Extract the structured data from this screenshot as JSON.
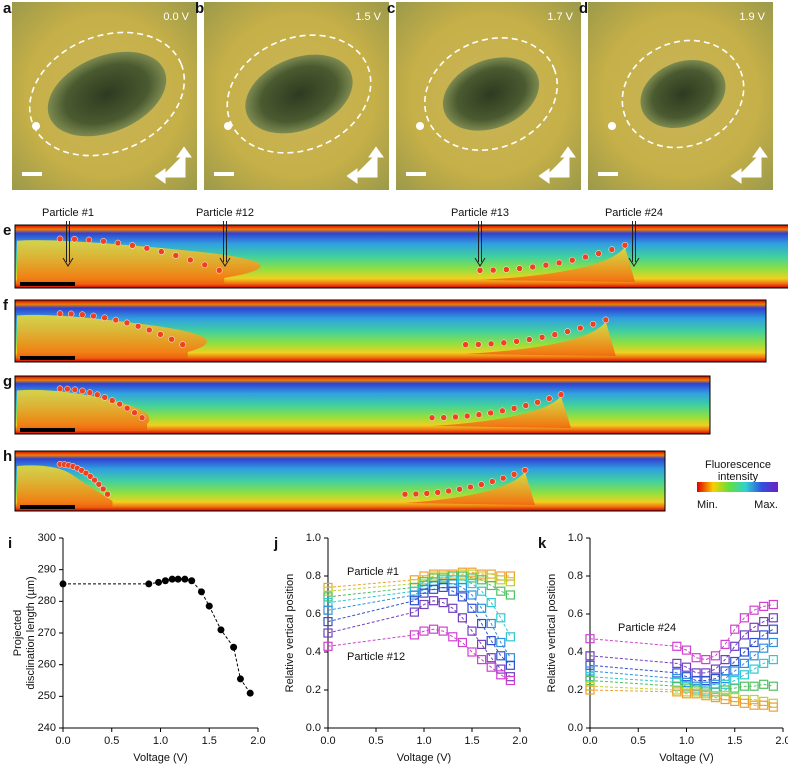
{
  "image_panels": [
    {
      "label": "a",
      "voltage": "0.0 V"
    },
    {
      "label": "b",
      "voltage": "1.5 V"
    },
    {
      "label": "c",
      "voltage": "1.7 V"
    },
    {
      "label": "d",
      "voltage": "1.9 V"
    }
  ],
  "strips": [
    {
      "label": "e"
    },
    {
      "label": "f"
    },
    {
      "label": "g"
    },
    {
      "label": "h"
    }
  ],
  "particle_labels": [
    "Particle #1",
    "Particle #12",
    "Particle #13",
    "Particle #24"
  ],
  "colorbar": {
    "title": [
      "Fluorescence",
      "intensity"
    ],
    "min": "Min.",
    "max": "Max."
  },
  "chart_data": [
    {
      "type": "line",
      "panel_label": "i",
      "marker": "circle",
      "linestyle": "dashed",
      "color": "#000000",
      "xlabel": "Voltage (V)",
      "ylabel": [
        "Projected",
        "disclination length (µm)"
      ],
      "x": [
        0,
        0.88,
        0.98,
        1.05,
        1.12,
        1.18,
        1.25,
        1.32,
        1.42,
        1.5,
        1.62,
        1.75,
        1.82,
        1.92
      ],
      "values": [
        285.5,
        285.5,
        286,
        286.5,
        287,
        287,
        287,
        286.5,
        283,
        278.5,
        271,
        265.5,
        255.5,
        251
      ],
      "xlim": [
        0,
        2
      ],
      "xticks": [
        {
          "value": 0,
          "label": "0.0"
        },
        0.5,
        {
          "value": 1,
          "label": "1.0"
        },
        1.5,
        {
          "value": 2,
          "label": "2.0"
        }
      ],
      "ylim": [
        240,
        300
      ],
      "yticks": [
        240,
        250,
        260,
        270,
        280,
        290,
        300
      ]
    },
    {
      "type": "line",
      "panel_label": "j",
      "marker": "square",
      "linestyle": "dashed",
      "xlabel": "Voltage (V)",
      "ylabel": [
        "Relative vertical position"
      ],
      "annotations": [
        "Particle #1",
        "Particle #12"
      ],
      "x": [
        0,
        0.9,
        1.0,
        1.1,
        1.2,
        1.3,
        1.4,
        1.5,
        1.6,
        1.7,
        1.8,
        1.9
      ],
      "series": [
        {
          "color": "#f0a030",
          "values": [
            0.74,
            0.78,
            0.8,
            0.81,
            0.81,
            0.81,
            0.82,
            0.82,
            0.81,
            0.81,
            0.8,
            0.8
          ]
        },
        {
          "color": "#c0d030",
          "values": [
            0.72,
            0.76,
            0.78,
            0.8,
            0.8,
            0.8,
            0.81,
            0.81,
            0.8,
            0.79,
            0.78,
            0.77
          ]
        },
        {
          "color": "#50c060",
          "values": [
            0.69,
            0.74,
            0.77,
            0.79,
            0.79,
            0.8,
            0.8,
            0.79,
            0.78,
            0.75,
            0.72,
            0.7
          ]
        },
        {
          "color": "#30c8d0",
          "values": [
            0.66,
            0.72,
            0.75,
            0.77,
            0.78,
            0.78,
            0.78,
            0.76,
            0.72,
            0.66,
            0.58,
            0.48
          ]
        },
        {
          "color": "#3090e0",
          "values": [
            0.62,
            0.7,
            0.73,
            0.75,
            0.76,
            0.76,
            0.74,
            0.7,
            0.63,
            0.55,
            0.45,
            0.37
          ]
        },
        {
          "color": "#3050d0",
          "values": [
            0.56,
            0.67,
            0.71,
            0.73,
            0.74,
            0.72,
            0.69,
            0.63,
            0.55,
            0.46,
            0.38,
            0.33
          ]
        },
        {
          "color": "#7040c0",
          "values": [
            0.5,
            0.61,
            0.65,
            0.67,
            0.66,
            0.63,
            0.58,
            0.51,
            0.44,
            0.37,
            0.31,
            0.27
          ]
        },
        {
          "color": "#d040d0",
          "values": [
            0.43,
            0.49,
            0.51,
            0.52,
            0.51,
            0.48,
            0.45,
            0.4,
            0.36,
            0.32,
            0.28,
            0.25
          ]
        }
      ],
      "xlim": [
        0,
        2
      ],
      "xticks": [
        {
          "value": 0,
          "label": "0.0"
        },
        0.5,
        {
          "value": 1,
          "label": "1.0"
        },
        1.5,
        {
          "value": 2,
          "label": "2.0"
        }
      ],
      "ylim": [
        0,
        1
      ],
      "yticks": [
        {
          "value": 0,
          "label": "0.0"
        },
        0.2,
        0.4,
        0.6,
        0.8,
        {
          "value": 1,
          "label": "1.0"
        }
      ]
    },
    {
      "type": "line",
      "panel_label": "k",
      "marker": "square",
      "linestyle": "dashed",
      "xlabel": "Voltage (V)",
      "ylabel": [
        "Relative vertical position"
      ],
      "annotations": [
        "Particle #24"
      ],
      "x": [
        0,
        0.9,
        1.0,
        1.1,
        1.2,
        1.3,
        1.4,
        1.5,
        1.6,
        1.7,
        1.8,
        1.9
      ],
      "series": [
        {
          "color": "#d040d0",
          "values": [
            0.47,
            0.43,
            0.41,
            0.37,
            0.36,
            0.38,
            0.44,
            0.52,
            0.58,
            0.62,
            0.64,
            0.65
          ]
        },
        {
          "color": "#7040c0",
          "values": [
            0.38,
            0.34,
            0.32,
            0.29,
            0.29,
            0.31,
            0.36,
            0.43,
            0.49,
            0.53,
            0.56,
            0.58
          ]
        },
        {
          "color": "#3050d0",
          "values": [
            0.33,
            0.29,
            0.27,
            0.25,
            0.25,
            0.26,
            0.3,
            0.35,
            0.4,
            0.45,
            0.49,
            0.52
          ]
        },
        {
          "color": "#3090e0",
          "values": [
            0.3,
            0.26,
            0.24,
            0.22,
            0.22,
            0.23,
            0.26,
            0.3,
            0.34,
            0.38,
            0.42,
            0.45
          ]
        },
        {
          "color": "#30c8d0",
          "values": [
            0.27,
            0.24,
            0.22,
            0.21,
            0.2,
            0.21,
            0.23,
            0.25,
            0.28,
            0.31,
            0.34,
            0.36
          ]
        },
        {
          "color": "#50c060",
          "values": [
            0.25,
            0.22,
            0.21,
            0.2,
            0.19,
            0.19,
            0.2,
            0.21,
            0.22,
            0.22,
            0.23,
            0.22
          ]
        },
        {
          "color": "#c0d030",
          "values": [
            0.22,
            0.2,
            0.19,
            0.19,
            0.18,
            0.17,
            0.17,
            0.16,
            0.15,
            0.15,
            0.14,
            0.13
          ]
        },
        {
          "color": "#f0a030",
          "values": [
            0.2,
            0.19,
            0.18,
            0.18,
            0.17,
            0.16,
            0.15,
            0.14,
            0.13,
            0.12,
            0.12,
            0.11
          ]
        }
      ],
      "xlim": [
        0,
        2
      ],
      "xticks": [
        {
          "value": 0,
          "label": "0.0"
        },
        0.5,
        {
          "value": 1,
          "label": "1.0"
        },
        1.5,
        {
          "value": 2,
          "label": "2.0"
        }
      ],
      "ylim": [
        0,
        1
      ],
      "yticks": [
        {
          "value": 0,
          "label": "0.0"
        },
        0.2,
        0.4,
        0.6,
        0.8,
        {
          "value": 1,
          "label": "1.0"
        }
      ]
    }
  ]
}
